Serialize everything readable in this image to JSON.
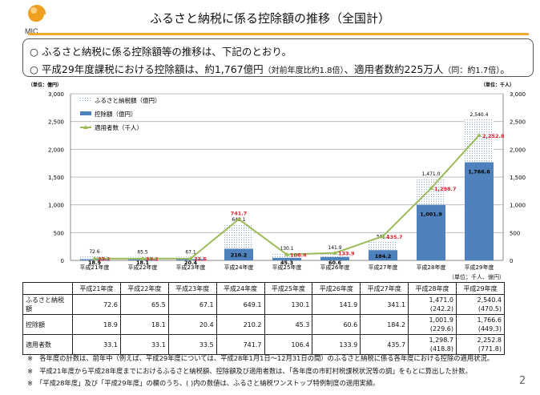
{
  "logo_text": "MIC",
  "title": "ふるさと納税に係る控除額の推移（全国計）",
  "bullets": [
    {
      "mark": "○",
      "text": "ふるさと納税に係る控除額等の推移は、下記のとおり。"
    },
    {
      "mark": "○",
      "text": "平成29年度課税における控除額は、約1,767億円",
      "small1": "（対前年度比約1.8倍）",
      "mid": "、適用者数約225万人",
      "small2": "（同：約1.7倍）",
      "end": "。"
    }
  ],
  "chart_data": {
    "type": "bar",
    "categories": [
      "平成21年度",
      "平成22年度",
      "平成23年度",
      "平成24年度",
      "平成25年度",
      "平成26年度",
      "平成27年度",
      "平成28年度",
      "平成29年度"
    ],
    "series": [
      {
        "name": "ふるさと納税額（億円）",
        "kind": "bar-dotted",
        "values": [
          72.6,
          65.5,
          67.1,
          649.1,
          130.1,
          141.9,
          341.1,
          1471.0,
          2540.4
        ],
        "labels": [
          "72.6",
          "65.5",
          "67.1",
          "649.1",
          "130.1",
          "141.9",
          "341.1",
          "1,471.0",
          "2,540.4"
        ]
      },
      {
        "name": "控除額（億円）",
        "kind": "bar",
        "values": [
          18.9,
          18.1,
          20.4,
          210.2,
          45.3,
          60.6,
          184.2,
          1001.9,
          1766.6
        ],
        "labels": [
          "18.9",
          "18.1",
          "20.4",
          "210.2",
          "45.3",
          "60.6",
          "184.2",
          "1,001.9",
          "1,766.6"
        ]
      },
      {
        "name": "適用者数（千人）",
        "kind": "line",
        "values": [
          33.1,
          33.1,
          33.5,
          741.7,
          106.4,
          133.9,
          435.7,
          1298.7,
          2252.8
        ],
        "labels": [
          "33.1",
          "33.1",
          "33.5",
          "741.7",
          "106.4",
          "133.9",
          "435.7",
          "1,298.7",
          "2,252.8"
        ]
      }
    ],
    "ylim": [
      0,
      3000
    ],
    "yticks": [
      "0",
      "500",
      "1,000",
      "1,500",
      "2,000",
      "2,500",
      "3,000"
    ],
    "ylabel_left": "（単位：億円）",
    "ylabel_right": "（単位：千人）",
    "grid": true,
    "legend": "top-left",
    "colors": {
      "bar": "#4f81bd",
      "dots": "#8aa6cc",
      "line": "#9bbb59",
      "line_label": "#e0202a"
    }
  },
  "table": {
    "unit": "（単位；千人、億円）",
    "headers": [
      "",
      "平成21年度",
      "平成22年度",
      "平成23年度",
      "平成24年度",
      "平成25年度",
      "平成26年度",
      "平成27年度",
      "平成28年度",
      "平成29年度"
    ],
    "rows": [
      {
        "label": "ふるさと納税額",
        "cells": [
          "72.6",
          "65.5",
          "67.1",
          "649.1",
          "130.1",
          "141.9",
          "341.1",
          "1,471.0",
          "2,540.4"
        ],
        "sub": [
          "(242.2)",
          "(470.5)"
        ]
      },
      {
        "label": "控除額",
        "cells": [
          "18.9",
          "18.1",
          "20.4",
          "210.2",
          "45.3",
          "60.6",
          "184.2",
          "1,001.9",
          "1,766.6"
        ],
        "sub": [
          "(229.6)",
          "(449.3)"
        ]
      },
      {
        "label": "適用者数",
        "cells": [
          "33.1",
          "33.1",
          "33.5",
          "741.7",
          "106.4",
          "133.9",
          "435.7",
          "1,298.7",
          "2,252.8"
        ],
        "sub": [
          "(418.8)",
          "(771.8)"
        ]
      }
    ]
  },
  "footnotes": [
    "※　各年度の計数は、前年中（例えば、平成29年度については、平成28年1月1日～12月31日の間）のふるさと納税に係る各年度における控除の適用状況。",
    "※　平成21年度から平成28年度までにおけるふるさと納税額、控除額及び適用者数は、「各年度の市町村税課税状況等の調」をもとに算出した計数。",
    "※　「平成28年度」及び「平成29年度」の欄のうち、( )内の数値は、ふるさと納税ワンストップ特例制度の適用実績。"
  ],
  "page_number": "2"
}
